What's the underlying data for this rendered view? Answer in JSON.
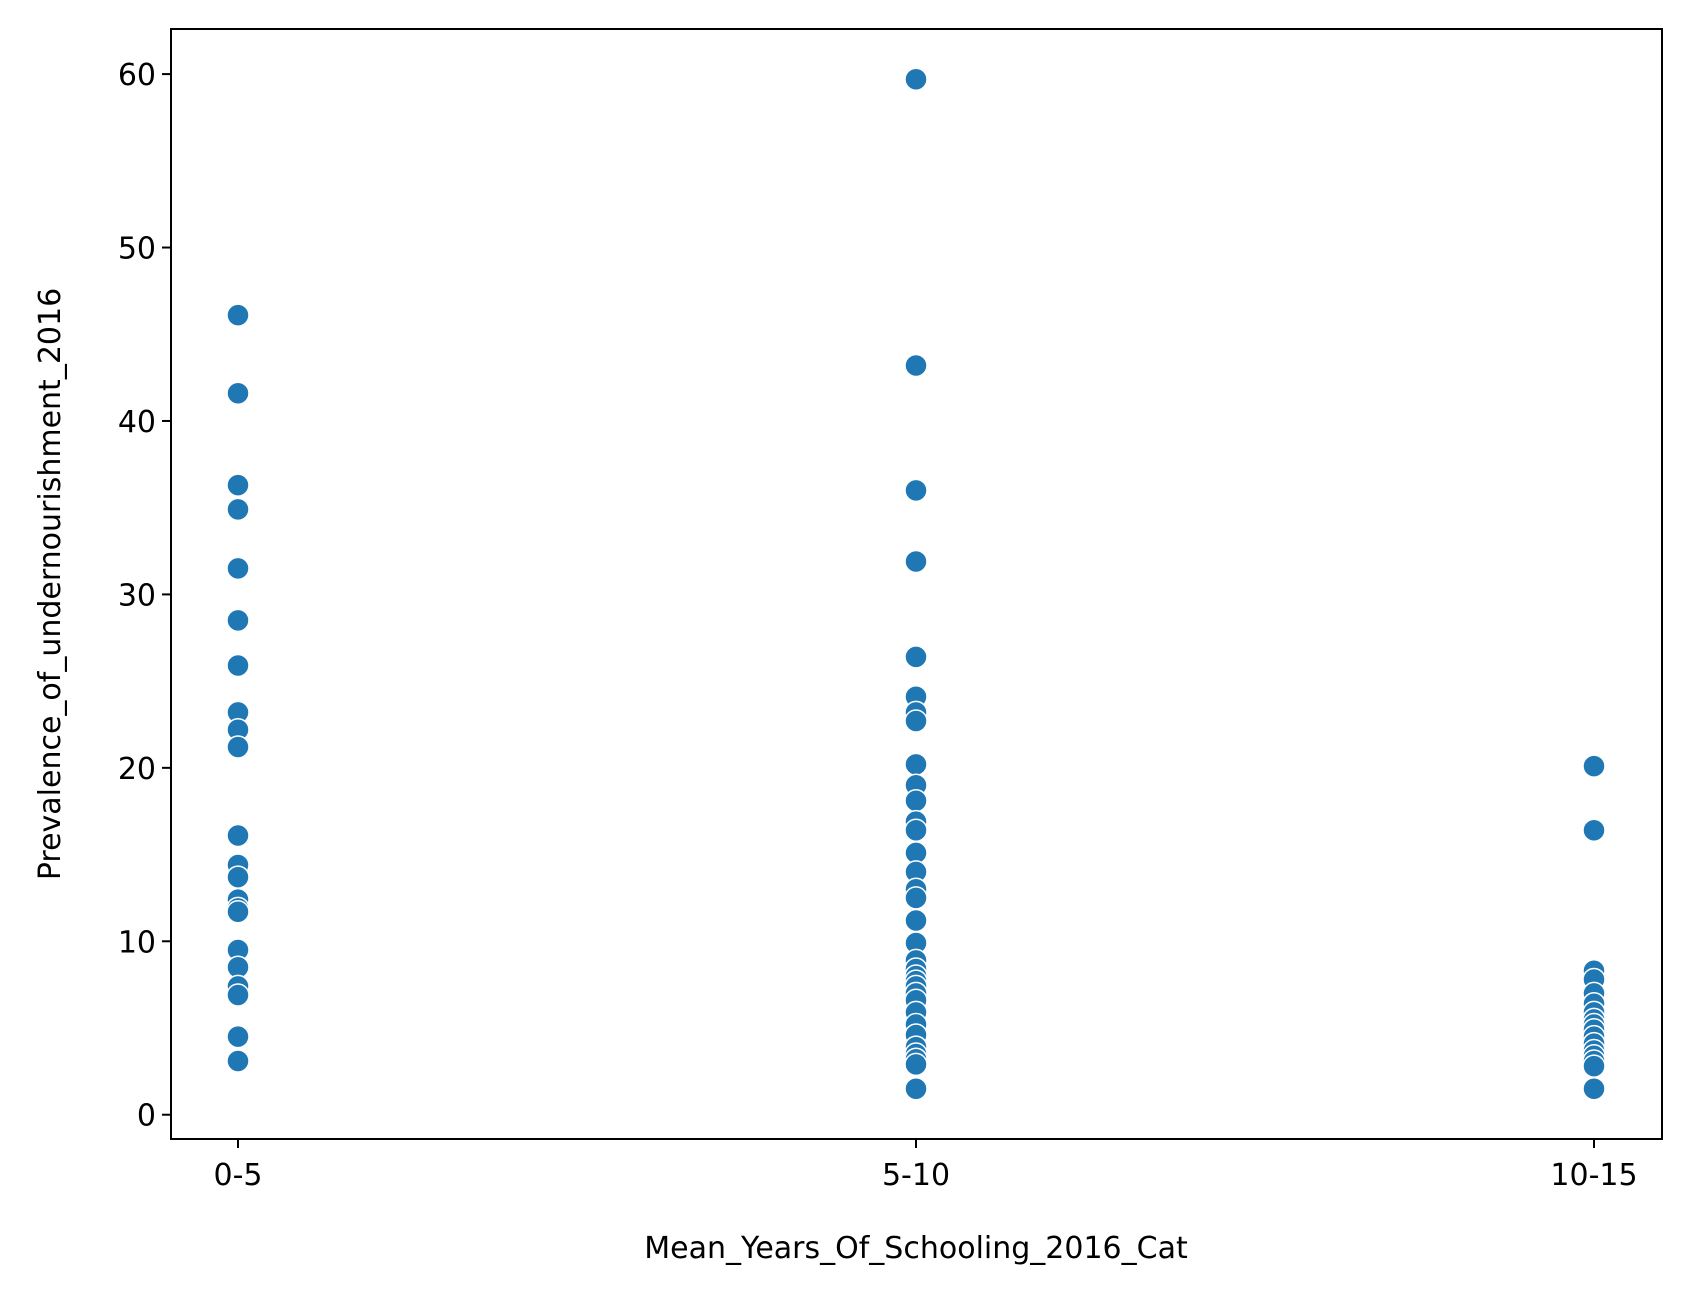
{
  "chart_data": {
    "type": "scatter",
    "title": "",
    "xlabel": "Mean_Years_Of_Schooling_2016_Cat",
    "ylabel": "Prevalence_of_undernourishment_2016",
    "categories": [
      "0-5",
      "5-10",
      "10-15"
    ],
    "y_ticks": [
      0,
      10,
      20,
      30,
      40,
      50,
      60
    ],
    "ylim": [
      -1.4,
      62.6
    ],
    "grid": false,
    "marker_color": "#1f77b4",
    "series": [
      {
        "category": "0-5",
        "values": [
          46.1,
          41.6,
          36.3,
          34.9,
          31.5,
          28.5,
          25.9,
          23.2,
          22.2,
          21.2,
          16.1,
          14.4,
          13.7,
          12.4,
          11.9,
          11.7,
          9.5,
          8.5,
          7.4,
          6.9,
          4.5,
          3.1
        ]
      },
      {
        "category": "5-10",
        "values": [
          59.7,
          43.2,
          36.0,
          31.9,
          26.4,
          24.1,
          23.2,
          22.7,
          20.2,
          19.0,
          18.1,
          16.9,
          16.4,
          15.1,
          14.0,
          13.0,
          12.5,
          11.2,
          9.9,
          8.9,
          8.4,
          8.0,
          7.7,
          7.4,
          7.0,
          6.6,
          5.9,
          5.2,
          4.6,
          3.9,
          3.5,
          3.2,
          2.9,
          1.5
        ]
      },
      {
        "category": "10-15",
        "values": [
          20.1,
          16.4,
          8.3,
          7.8,
          7.0,
          6.4,
          5.9,
          5.5,
          5.2,
          4.9,
          4.5,
          4.1,
          3.7,
          3.4,
          3.1,
          2.8,
          1.5
        ]
      }
    ]
  }
}
